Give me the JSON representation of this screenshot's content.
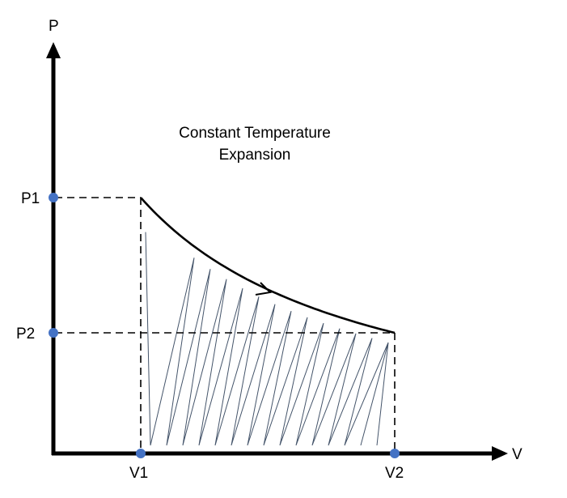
{
  "diagram": {
    "title_line1": "Constant Temperature",
    "title_line2": "Expansion",
    "axes": {
      "y_label": "P",
      "x_label": "V"
    },
    "ticks": {
      "p1": "P1",
      "p2": "P2",
      "v1": "V1",
      "v2": "V2"
    },
    "colors": {
      "axis": "#000000",
      "curve": "#000000",
      "dashed": "#000000",
      "hatch": "#44546a",
      "point": "#4472c4"
    }
  }
}
